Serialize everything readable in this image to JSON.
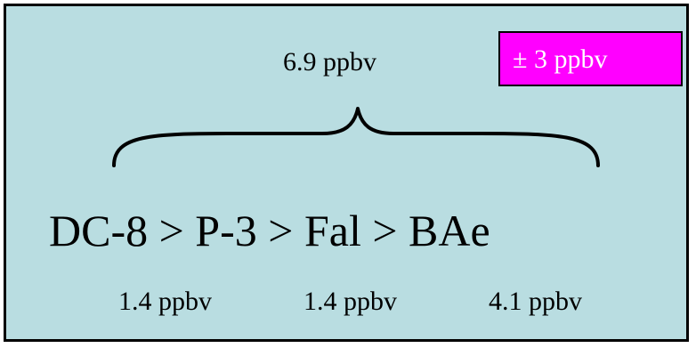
{
  "diagram": {
    "panel_background": "#b9dde1",
    "badge_background": "#ff00ff",
    "total_difference": "6.9 ppbv",
    "uncertainty_badge": "± 3 ppbv",
    "ranking": "DC-8 > P-3 > Fal > BAe",
    "pairwise_differences": [
      "1.4 ppbv",
      "1.4 ppbv",
      "4.1 ppbv"
    ]
  }
}
